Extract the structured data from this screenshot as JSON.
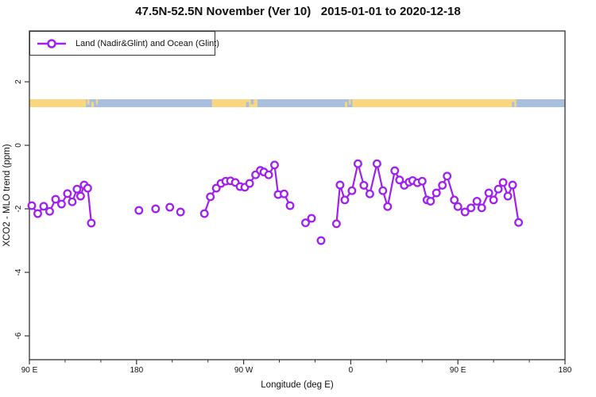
{
  "chart_data": {
    "type": "line",
    "title": "47.5N-52.5N November (Ver 10)   2015-01-01 to 2020-12-18",
    "xlabel": "Longitude (deg E)",
    "ylabel": "XCO2 - MLO trend (ppm)",
    "xlim": [
      90,
      540
    ],
    "ylim": [
      -6.75,
      3.6
    ],
    "grid": "off",
    "legend_position": "top-left",
    "x_ticks": [
      {
        "value": 90,
        "label": "90 E"
      },
      {
        "value": 180,
        "label": "180"
      },
      {
        "value": 270,
        "label": "90 W"
      },
      {
        "value": 360,
        "label": "0"
      },
      {
        "value": 450,
        "label": "90 E"
      },
      {
        "value": 540,
        "label": "180"
      }
    ],
    "x_minor_step": 30,
    "y_ticks": [
      {
        "value": 2,
        "label": "2"
      },
      {
        "value": 0,
        "label": "0"
      },
      {
        "value": -2,
        "label": "-2"
      },
      {
        "value": -4,
        "label": "-4"
      },
      {
        "value": -6,
        "label": "-6"
      }
    ],
    "legend": {
      "label": "Land (Nadir&Glint) and Ocean (Glint)"
    },
    "colors": {
      "series": "#A020F0",
      "land": "#FBD681",
      "ocean": "#A9BFDE",
      "axis": "#333333"
    },
    "land_ocean_band": {
      "y_range": [
        1.2,
        1.45
      ],
      "segments": [
        {
          "from": 90,
          "to": 137.5,
          "surface": "land"
        },
        {
          "from": 137.5,
          "to": 243.5,
          "surface": "ocean"
        },
        {
          "from": 243.5,
          "to": 281.5,
          "surface": "land"
        },
        {
          "from": 281.5,
          "to": 361.5,
          "surface": "ocean"
        },
        {
          "from": 361.5,
          "to": 499,
          "surface": "land"
        },
        {
          "from": 499,
          "to": 540,
          "surface": "ocean"
        }
      ],
      "patches": [
        {
          "from": 138.5,
          "to": 140.5,
          "surface": "land"
        },
        {
          "from": 142,
          "to": 144,
          "surface": "land"
        },
        {
          "from": 146,
          "to": 147.5,
          "surface": "land"
        },
        {
          "from": 272,
          "to": 274.5,
          "surface": "ocean"
        },
        {
          "from": 276,
          "to": 278.5,
          "surface": "ocean"
        },
        {
          "from": 355,
          "to": 357,
          "surface": "land"
        },
        {
          "from": 358.5,
          "to": 360,
          "surface": "land"
        },
        {
          "from": 495.5,
          "to": 497.5,
          "surface": "ocean"
        }
      ]
    },
    "series": {
      "name": "Land (Nadir&Glint) and Ocean (Glint)",
      "marker": "open-circle",
      "segments": [
        [
          [
            92,
            -1.9
          ],
          [
            97,
            -2.15
          ],
          [
            102,
            -1.92
          ],
          [
            107,
            -2.08
          ],
          [
            112,
            -1.7
          ],
          [
            117,
            -1.85
          ],
          [
            122,
            -1.52
          ],
          [
            126,
            -1.78
          ],
          [
            130,
            -1.38
          ],
          [
            133,
            -1.6
          ],
          [
            136,
            -1.25
          ],
          [
            139,
            -1.35
          ],
          [
            142,
            -2.45
          ]
        ],
        [
          [
            182,
            -2.05
          ]
        ],
        [
          [
            196,
            -2.0
          ]
        ],
        [
          [
            208,
            -1.95
          ]
        ],
        [
          [
            217,
            -2.1
          ]
        ],
        [
          [
            237,
            -2.15
          ],
          [
            242,
            -1.62
          ],
          [
            247,
            -1.35
          ],
          [
            251,
            -1.2
          ],
          [
            255,
            -1.13
          ],
          [
            259,
            -1.12
          ],
          [
            263,
            -1.17
          ],
          [
            267,
            -1.3
          ],
          [
            271,
            -1.32
          ],
          [
            275,
            -1.2
          ],
          [
            280,
            -0.93
          ],
          [
            284,
            -0.79
          ],
          [
            287,
            -0.84
          ],
          [
            291,
            -0.93
          ],
          [
            296,
            -0.62
          ],
          [
            299,
            -1.55
          ],
          [
            304,
            -1.53
          ],
          [
            309,
            -1.9
          ]
        ],
        [
          [
            322,
            -2.44
          ],
          [
            327,
            -2.3
          ]
        ],
        [
          [
            335,
            -3.0
          ]
        ],
        [
          [
            348,
            -2.47
          ],
          [
            351,
            -1.25
          ],
          [
            355,
            -1.72
          ],
          [
            361,
            -1.43
          ],
          [
            366,
            -0.58
          ],
          [
            371,
            -1.26
          ],
          [
            376,
            -1.53
          ],
          [
            382,
            -0.58
          ],
          [
            387,
            -1.43
          ],
          [
            391,
            -1.93
          ],
          [
            397,
            -0.8
          ],
          [
            401,
            -1.09
          ],
          [
            405,
            -1.26
          ],
          [
            409,
            -1.16
          ],
          [
            412,
            -1.11
          ],
          [
            416,
            -1.18
          ],
          [
            420,
            -1.13
          ],
          [
            424,
            -1.72
          ],
          [
            427,
            -1.76
          ],
          [
            432,
            -1.5
          ],
          [
            437,
            -1.26
          ],
          [
            441,
            -0.97
          ],
          [
            447,
            -1.72
          ],
          [
            450,
            -1.93
          ],
          [
            456,
            -2.1
          ],
          [
            461,
            -1.97
          ],
          [
            466,
            -1.76
          ],
          [
            470,
            -1.97
          ],
          [
            476,
            -1.5
          ],
          [
            480,
            -1.72
          ],
          [
            484,
            -1.38
          ],
          [
            488,
            -1.17
          ],
          [
            492,
            -1.6
          ],
          [
            496,
            -1.25
          ],
          [
            501,
            -2.43
          ]
        ]
      ]
    }
  }
}
